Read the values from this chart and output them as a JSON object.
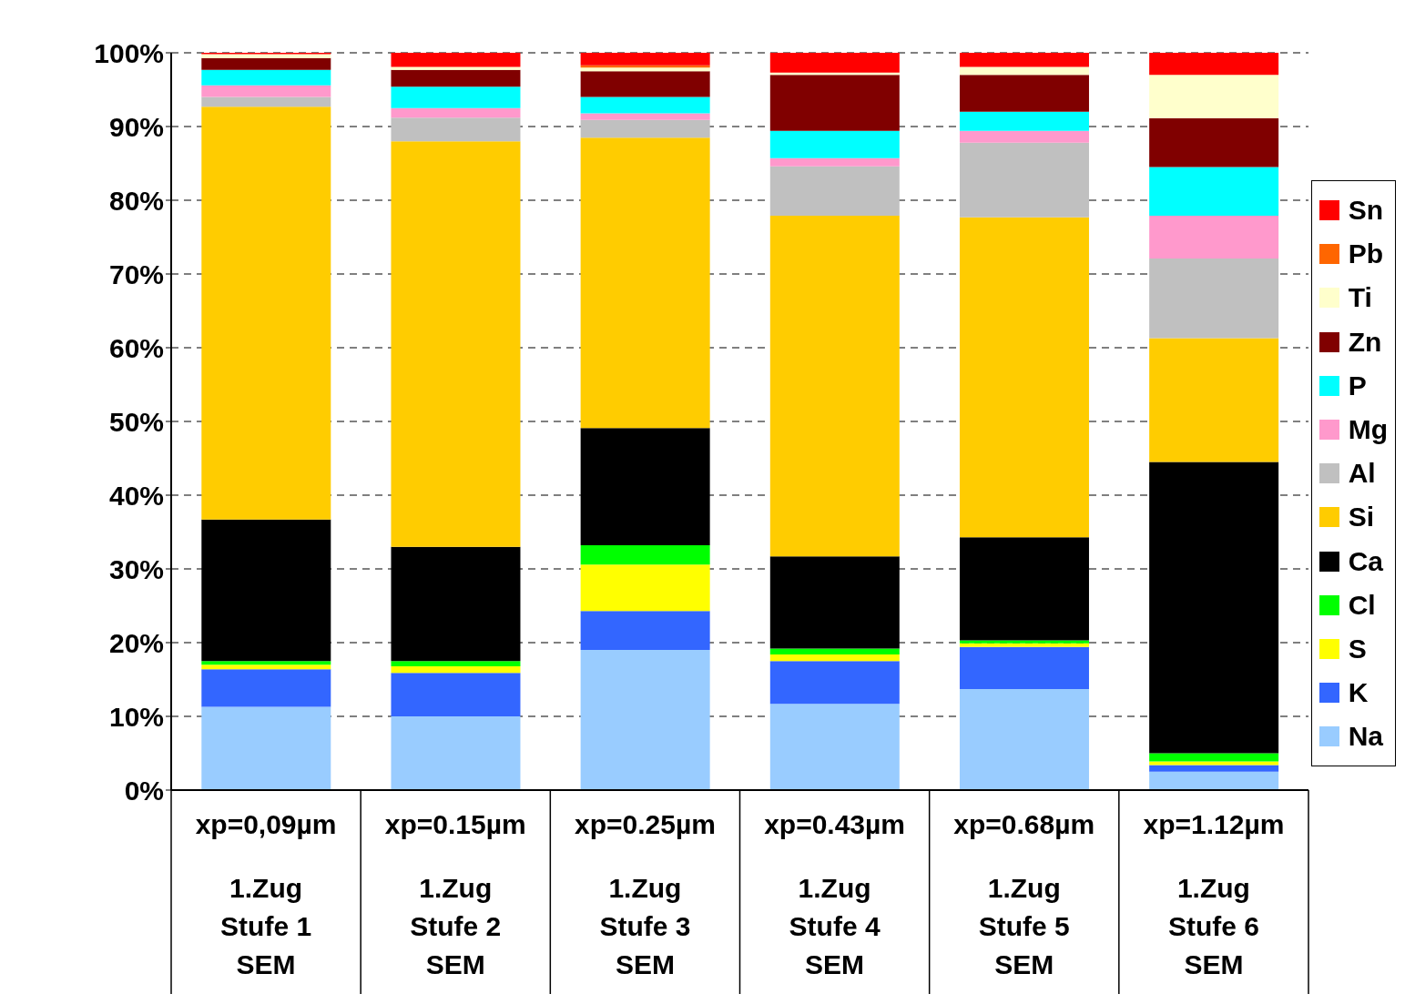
{
  "chart_data": {
    "type": "bar",
    "stacked": true,
    "categories": [
      "xp=0,09µm\n1.Zug\nStufe 1\nSEM",
      "xp=0.15µm\n1.Zug\nStufe 2\nSEM",
      "xp=0.25µm\n1.Zug\nStufe 3\nSEM",
      "xp=0.43µm\n1.Zug\nStufe 4\nSEM",
      "xp=0.68µm\n1.Zug\nStufe 5\nSEM",
      "xp=1.12µm\n1.Zug\nStufe 6\nSEM"
    ],
    "series": [
      {
        "name": "Na",
        "color": "#99ccff",
        "values": [
          11.3,
          10.0,
          19.0,
          11.7,
          13.7,
          2.5
        ]
      },
      {
        "name": "K",
        "color": "#3366ff",
        "values": [
          5.1,
          5.9,
          5.3,
          5.8,
          5.7,
          0.9
        ]
      },
      {
        "name": "S",
        "color": "#ffff00",
        "values": [
          0.6,
          0.9,
          6.3,
          0.9,
          0.5,
          0.5
        ]
      },
      {
        "name": "Cl",
        "color": "#00ff00",
        "values": [
          0.5,
          0.7,
          2.6,
          0.8,
          0.4,
          1.1
        ]
      },
      {
        "name": "Ca",
        "color": "#000000",
        "values": [
          19.2,
          15.5,
          15.9,
          12.5,
          14.0,
          39.5
        ]
      },
      {
        "name": "Si",
        "color": "#ffcc00",
        "values": [
          56.0,
          55.0,
          39.4,
          46.2,
          43.4,
          16.8
        ]
      },
      {
        "name": "Al",
        "color": "#c0c0c0",
        "values": [
          1.3,
          3.2,
          2.4,
          6.7,
          10.1,
          10.8
        ]
      },
      {
        "name": "Mg",
        "color": "#ff99cc",
        "values": [
          1.6,
          1.3,
          0.9,
          1.1,
          1.6,
          5.8
        ]
      },
      {
        "name": "P",
        "color": "#00ffff",
        "values": [
          2.1,
          2.9,
          2.2,
          3.7,
          2.6,
          6.6
        ]
      },
      {
        "name": "Zn",
        "color": "#800000",
        "values": [
          1.6,
          2.3,
          3.5,
          7.6,
          5.0,
          6.6
        ]
      },
      {
        "name": "Ti",
        "color": "#ffffcc",
        "values": [
          0.5,
          0.4,
          0.5,
          0.3,
          1.1,
          5.9
        ]
      },
      {
        "name": "Pb",
        "color": "#ff6600",
        "values": [
          null,
          0,
          0.3,
          0,
          0,
          0
        ]
      },
      {
        "name": "Sn",
        "color": "#ff0000",
        "values": [
          0.2,
          1.9,
          1.7,
          2.7,
          1.9,
          3.0
        ]
      }
    ],
    "ylim": [
      0,
      100
    ],
    "yticks": [
      {
        "value": 0,
        "label": "0%"
      },
      {
        "value": 10,
        "label": "10%"
      },
      {
        "value": 20,
        "label": "20%"
      },
      {
        "value": 30,
        "label": "30%"
      },
      {
        "value": 40,
        "label": "40%"
      },
      {
        "value": 50,
        "label": "50%"
      },
      {
        "value": 60,
        "label": "60%"
      },
      {
        "value": 70,
        "label": "70%"
      },
      {
        "value": 80,
        "label": "80%"
      },
      {
        "value": 90,
        "label": "90%"
      },
      {
        "value": 100,
        "label": "100%"
      }
    ],
    "grid": "y",
    "legend": "right"
  }
}
